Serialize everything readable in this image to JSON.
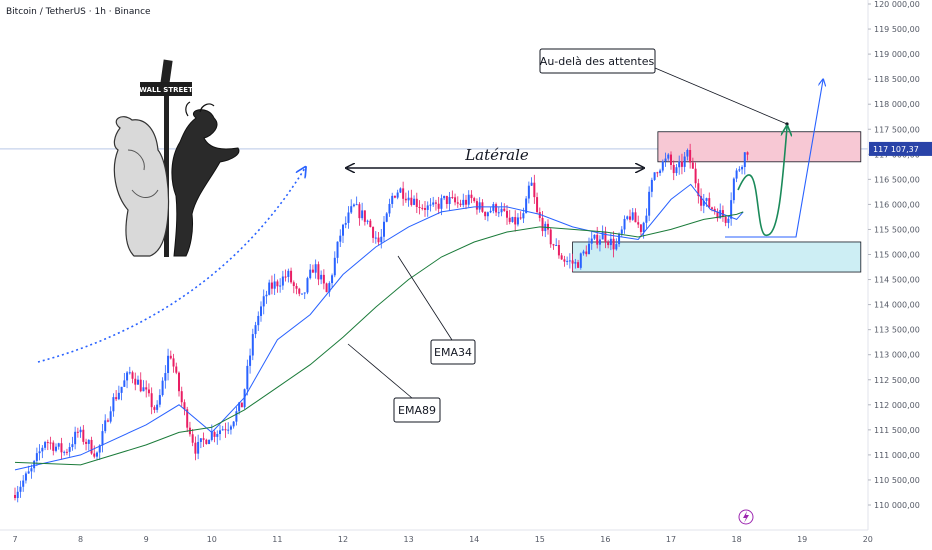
{
  "header": {
    "title": "Bitcoin / TetherUS · 1h · Binance"
  },
  "chart_data": {
    "type": "candlestick",
    "x_axis": {
      "ticks": [
        "7",
        "8",
        "9",
        "10",
        "11",
        "12",
        "13",
        "14",
        "15",
        "16",
        "17",
        "18",
        "19",
        "20"
      ]
    },
    "y_axis": {
      "range": [
        109750,
        120250
      ],
      "ticks": [
        "120 000,00",
        "119 500,00",
        "119 000,00",
        "118 500,00",
        "118 000,00",
        "117 500,00",
        "117 000,00",
        "116 500,00",
        "116 000,00",
        "115 500,00",
        "115 000,00",
        "114 500,00",
        "114 000,00",
        "113 500,00",
        "113 000,00",
        "112 500,00",
        "112 000,00",
        "111 500,00",
        "111 000,00",
        "110 500,00",
        "110 000,00"
      ]
    },
    "current_price": {
      "label": "117 107,37",
      "value": 117107.37
    },
    "candle_path": [
      [
        7.0,
        110200
      ],
      [
        7.3,
        110700
      ],
      [
        7.5,
        111300
      ],
      [
        7.8,
        111050
      ],
      [
        8.0,
        111450
      ],
      [
        8.3,
        111000
      ],
      [
        8.5,
        112000
      ],
      [
        8.8,
        112650
      ],
      [
        9.0,
        112300
      ],
      [
        9.2,
        111850
      ],
      [
        9.4,
        113100
      ],
      [
        9.6,
        111950
      ],
      [
        9.8,
        111100
      ],
      [
        10.0,
        111400
      ],
      [
        10.3,
        111600
      ],
      [
        10.5,
        112000
      ],
      [
        10.7,
        113600
      ],
      [
        10.9,
        114300
      ],
      [
        11.2,
        114600
      ],
      [
        11.4,
        114050
      ],
      [
        11.6,
        114800
      ],
      [
        11.8,
        114200
      ],
      [
        12.0,
        115400
      ],
      [
        12.2,
        115950
      ],
      [
        12.4,
        115700
      ],
      [
        12.6,
        115200
      ],
      [
        12.8,
        116200
      ],
      [
        12.9,
        116300
      ],
      [
        13.2,
        116000
      ],
      [
        13.4,
        115900
      ],
      [
        13.6,
        116100
      ],
      [
        13.8,
        116000
      ],
      [
        14.0,
        116100
      ],
      [
        14.2,
        115850
      ],
      [
        14.4,
        115950
      ],
      [
        14.6,
        115600
      ],
      [
        14.8,
        115750
      ],
      [
        14.9,
        116500
      ],
      [
        15.0,
        115800
      ],
      [
        15.2,
        115300
      ],
      [
        15.4,
        114900
      ],
      [
        15.6,
        114800
      ],
      [
        15.8,
        115200
      ],
      [
        16.0,
        115400
      ],
      [
        16.2,
        115150
      ],
      [
        16.4,
        115800
      ],
      [
        16.6,
        115500
      ],
      [
        16.8,
        116700
      ],
      [
        17.0,
        116900
      ],
      [
        17.1,
        116600
      ],
      [
        17.3,
        117000
      ],
      [
        17.5,
        116100
      ],
      [
        17.7,
        115900
      ],
      [
        17.9,
        115700
      ],
      [
        18.0,
        116500
      ],
      [
        18.2,
        117100
      ]
    ],
    "series": [
      {
        "name": "EMA34",
        "color": "#2962ff",
        "points": [
          [
            7.0,
            110700
          ],
          [
            8.0,
            111000
          ],
          [
            9.0,
            111600
          ],
          [
            9.5,
            112000
          ],
          [
            10.0,
            111450
          ],
          [
            10.5,
            112150
          ],
          [
            11.0,
            113300
          ],
          [
            11.5,
            113800
          ],
          [
            12.0,
            114600
          ],
          [
            12.5,
            115150
          ],
          [
            13.0,
            115550
          ],
          [
            13.5,
            115850
          ],
          [
            14.0,
            115950
          ],
          [
            14.5,
            115950
          ],
          [
            15.0,
            115800
          ],
          [
            15.5,
            115550
          ],
          [
            16.0,
            115400
          ],
          [
            16.5,
            115300
          ],
          [
            17.0,
            116100
          ],
          [
            17.3,
            116400
          ],
          [
            17.6,
            115900
          ],
          [
            18.0,
            115700
          ],
          [
            18.1,
            115850
          ]
        ]
      },
      {
        "name": "EMA89",
        "color": "#1b7b3a",
        "points": [
          [
            7.0,
            110850
          ],
          [
            8.0,
            110800
          ],
          [
            9.0,
            111200
          ],
          [
            9.5,
            111450
          ],
          [
            10.0,
            111550
          ],
          [
            10.5,
            111900
          ],
          [
            11.0,
            112350
          ],
          [
            11.5,
            112800
          ],
          [
            12.0,
            113350
          ],
          [
            12.5,
            113950
          ],
          [
            13.0,
            114500
          ],
          [
            13.5,
            114950
          ],
          [
            14.0,
            115250
          ],
          [
            14.5,
            115450
          ],
          [
            15.0,
            115550
          ],
          [
            15.5,
            115500
          ],
          [
            16.0,
            115450
          ],
          [
            16.5,
            115350
          ],
          [
            17.0,
            115500
          ],
          [
            17.5,
            115700
          ],
          [
            18.0,
            115800
          ],
          [
            18.1,
            115850
          ]
        ]
      }
    ],
    "zones": [
      {
        "name": "resistance-zone",
        "x": [
          16.8,
          20.0
        ],
        "y": [
          116850,
          117450
        ],
        "color": "#f7c8d4"
      },
      {
        "name": "support-zone",
        "x": [
          15.5,
          20.0
        ],
        "y": [
          114650,
          115250
        ],
        "color": "#cdeef4"
      }
    ],
    "annotations": [
      {
        "text": "Latérale"
      },
      {
        "text": "EMA34"
      },
      {
        "text": "EMA89"
      },
      {
        "text": "Au-delà des attentes"
      }
    ],
    "logo_text": "WALL STREET",
    "colors": {
      "up": "#2962ff",
      "down": "#e91e63",
      "projection_green": "#1b8a5a",
      "projection_blue": "#2962ff"
    }
  }
}
